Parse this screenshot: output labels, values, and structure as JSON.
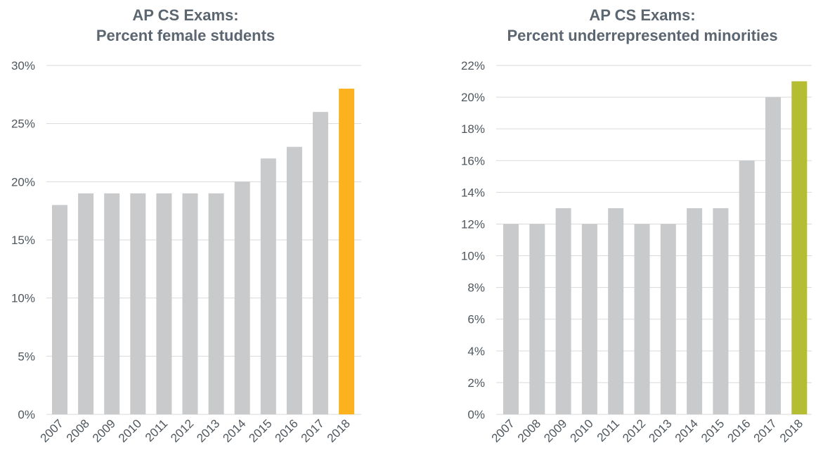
{
  "chart_data": [
    {
      "type": "bar",
      "title": [
        "AP CS Exams:",
        "Percent female students"
      ],
      "categories": [
        "2007",
        "2008",
        "2009",
        "2010",
        "2011",
        "2012",
        "2013",
        "2014",
        "2015",
        "2016",
        "2017",
        "2018"
      ],
      "values": [
        18,
        19,
        19,
        19,
        19,
        19,
        19,
        20,
        22,
        23,
        26,
        28
      ],
      "ylim": [
        0,
        30
      ],
      "yticks": [
        0,
        5,
        10,
        15,
        20,
        25,
        30
      ],
      "ytick_labels": [
        "0%",
        "5%",
        "10%",
        "15%",
        "20%",
        "25%",
        "30%"
      ],
      "xlabel": "",
      "ylabel": "",
      "grid": true,
      "bar_color": "#c8cacc",
      "highlight_color": "#fbb21e",
      "highlight_index": 11
    },
    {
      "type": "bar",
      "title": [
        "AP CS Exams:",
        "Percent underrepresented minorities"
      ],
      "categories": [
        "2007",
        "2008",
        "2009",
        "2010",
        "2011",
        "2012",
        "2013",
        "2014",
        "2015",
        "2016",
        "2017",
        "2018"
      ],
      "values": [
        12,
        12,
        13,
        12,
        13,
        12,
        12,
        13,
        13,
        16,
        20,
        21
      ],
      "ylim": [
        0,
        22
      ],
      "yticks": [
        0,
        2,
        4,
        6,
        8,
        10,
        12,
        14,
        16,
        18,
        20,
        22
      ],
      "ytick_labels": [
        "0%",
        "2%",
        "4%",
        "6%",
        "8%",
        "10%",
        "12%",
        "14%",
        "16%",
        "18%",
        "20%",
        "22%"
      ],
      "xlabel": "",
      "ylabel": "",
      "grid": true,
      "bar_color": "#c8cacc",
      "highlight_color": "#b5bd32",
      "highlight_index": 11
    }
  ]
}
